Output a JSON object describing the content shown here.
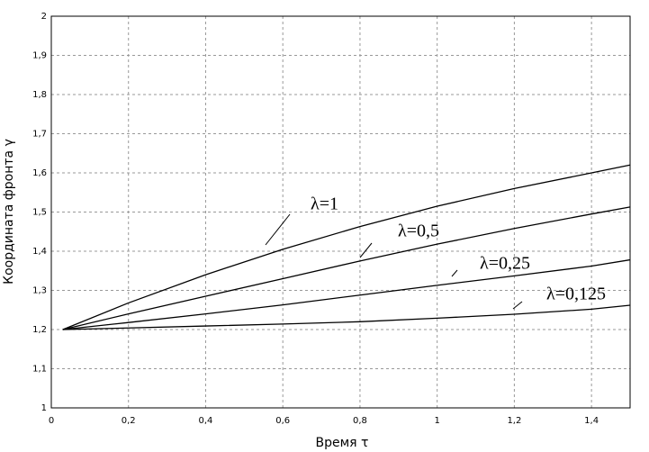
{
  "chart_data": {
    "type": "line",
    "x_label": "Время  τ",
    "y_label": "Координата фронта γ",
    "x": [
      0.03,
      0.2,
      0.4,
      0.6,
      0.8,
      1.0,
      1.2,
      1.4,
      1.5
    ],
    "series": [
      {
        "name": "λ=1",
        "color": "#000000",
        "values": [
          1.2,
          1.268,
          1.34,
          1.405,
          1.463,
          1.515,
          1.56,
          1.6,
          1.62
        ]
      },
      {
        "name": "λ=0,5",
        "color": "#000000",
        "values": [
          1.2,
          1.24,
          1.285,
          1.33,
          1.375,
          1.418,
          1.458,
          1.495,
          1.513
        ]
      },
      {
        "name": "λ=0,25",
        "color": "#000000",
        "values": [
          1.2,
          1.218,
          1.24,
          1.263,
          1.288,
          1.313,
          1.337,
          1.362,
          1.378
        ]
      },
      {
        "name": "λ=0,125",
        "color": "#000000",
        "values": [
          1.2,
          1.204,
          1.209,
          1.214,
          1.22,
          1.229,
          1.239,
          1.252,
          1.262
        ]
      }
    ],
    "xlim": [
      0,
      1.5
    ],
    "ylim": [
      1,
      2
    ],
    "xticks": [
      0,
      {
        "value": 0.2,
        "label": "0,2"
      },
      {
        "value": 0.4,
        "label": "0,4"
      },
      {
        "value": 0.6,
        "label": "0,6"
      },
      {
        "value": 0.8,
        "label": "0,8"
      },
      1,
      {
        "value": 1.2,
        "label": "1,2"
      },
      {
        "value": 1.4,
        "label": "1,4"
      }
    ],
    "yticks": [
      1,
      {
        "value": 1.1,
        "label": "1,1"
      },
      {
        "value": 1.2,
        "label": "1,2"
      },
      {
        "value": 1.3,
        "label": "1,3"
      },
      {
        "value": 1.4,
        "label": "1,4"
      },
      {
        "value": 1.5,
        "label": "1,5"
      },
      {
        "value": 1.6,
        "label": "1,6"
      },
      {
        "value": 1.7,
        "label": "1,7"
      },
      {
        "value": 1.8,
        "label": "1,8"
      },
      {
        "value": 1.9,
        "label": "1,9"
      },
      2
    ],
    "grid": true
  }
}
